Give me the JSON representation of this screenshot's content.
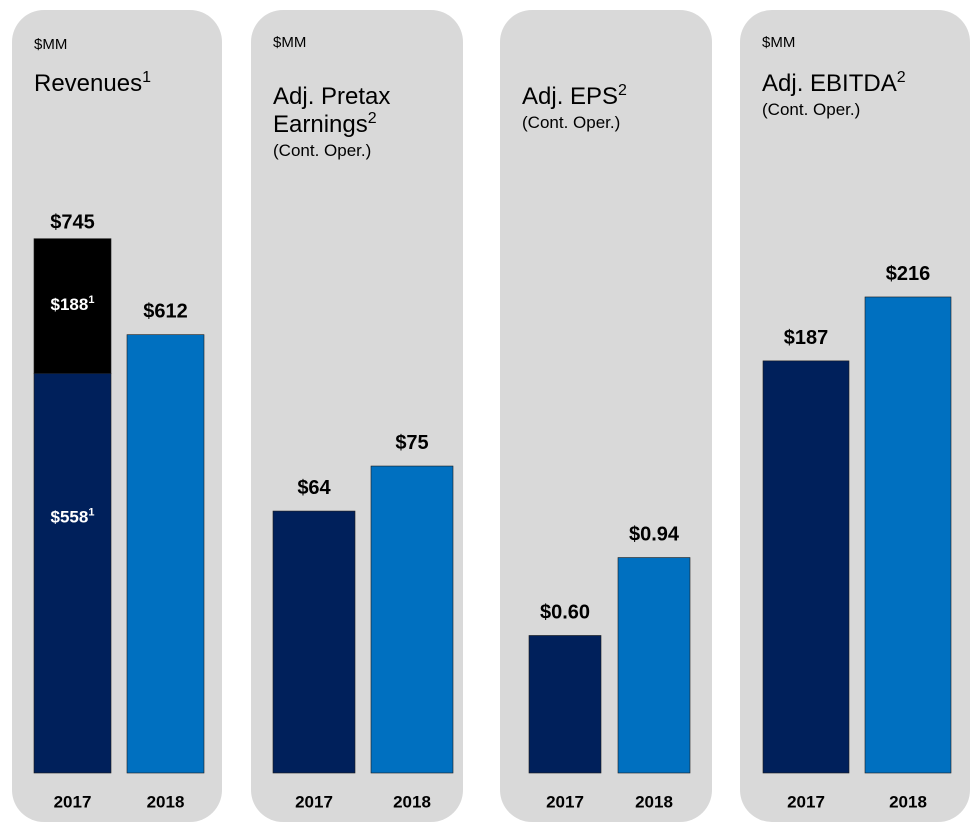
{
  "chart_data": [
    {
      "type": "bar",
      "unit": "$MM",
      "title": "Revenues",
      "title_note": "1",
      "categories": [
        "2017",
        "2018"
      ],
      "series": [
        {
          "colors": [
            "#00205b",
            "#0070c0"
          ],
          "values": [
            558,
            612
          ],
          "value_labels": [
            "$558",
            "$612"
          ],
          "value_label_notes": [
            "1",
            null
          ]
        },
        {
          "colors": [
            "#000000",
            null
          ],
          "values": [
            188,
            null
          ],
          "value_labels": [
            "$188",
            null
          ],
          "value_label_notes": [
            "1",
            null
          ]
        }
      ],
      "totals": [
        745,
        null
      ],
      "total_labels": [
        "$745",
        null
      ],
      "ylim": [
        0,
        800
      ]
    },
    {
      "type": "bar",
      "unit": "$MM",
      "title": "Adj. Pretax Earnings",
      "title_note": "2",
      "subtitle": "(Cont. Oper.)",
      "categories": [
        "2017",
        "2018"
      ],
      "series": [
        {
          "colors": [
            "#00205b",
            "#0070c0"
          ],
          "values": [
            64,
            75
          ],
          "value_labels": [
            "$64",
            "$75"
          ]
        }
      ],
      "ylim": [
        0,
        140
      ]
    },
    {
      "type": "bar",
      "title": "Adj. EPS",
      "title_note": "2",
      "subtitle": "(Cont. Oper.)",
      "categories": [
        "2017",
        "2018"
      ],
      "series": [
        {
          "colors": [
            "#00205b",
            "#0070c0"
          ],
          "values": [
            0.6,
            0.94
          ],
          "value_labels": [
            "$0.60",
            "$0.94"
          ]
        }
      ],
      "ylim": [
        0,
        2.5
      ]
    },
    {
      "type": "bar",
      "unit": "$MM",
      "title": "Adj. EBITDA",
      "title_note": "2",
      "subtitle": "(Cont. Oper.)",
      "categories": [
        "2017",
        "2018"
      ],
      "series": [
        {
          "colors": [
            "#00205b",
            "#0070c0"
          ],
          "values": [
            187,
            216
          ],
          "value_labels": [
            "$187",
            "$216"
          ]
        }
      ],
      "ylim": [
        0,
        260
      ]
    }
  ]
}
